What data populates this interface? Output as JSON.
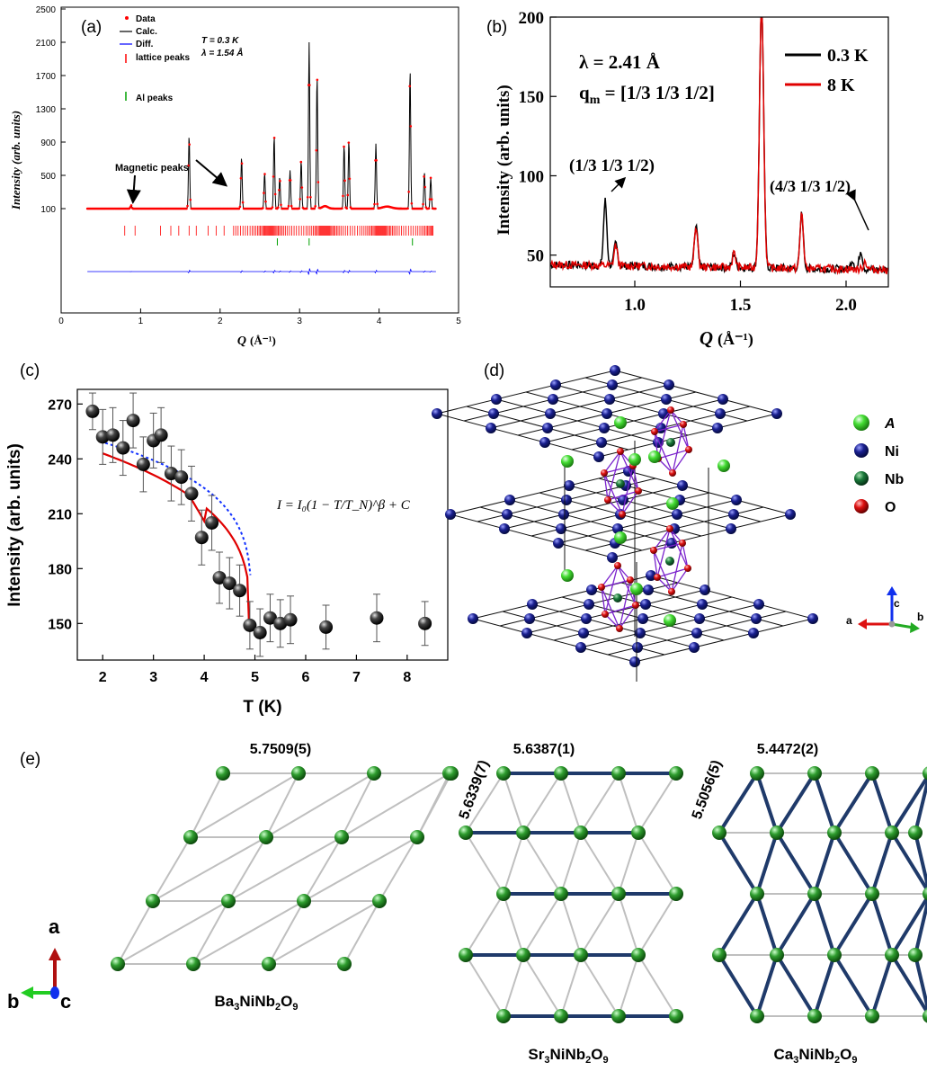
{
  "panels": {
    "a": {
      "label": "(a)",
      "ylabel": "Intensity (arb. units)",
      "xlabel_main": "Q",
      "xlabel_unit": "(Å⁻¹)",
      "legend": {
        "data": "Data",
        "calc": "Calc.",
        "diff": "Diff.",
        "lattice": "lattice peaks",
        "al": "Al peaks"
      },
      "cond_T": "T = 0.3 K",
      "cond_lambda": "λ = 1.54 Å",
      "annotation": "Magnetic peaks",
      "colors": {
        "data": "#ff0000",
        "calc": "#000000",
        "diff": "#0000ff",
        "lattice": "#ff0000",
        "al": "#00a000"
      }
    },
    "b": {
      "label": "(b)",
      "ylabel": "Intensity (arb. units)",
      "xlabel_main": "Q",
      "xlabel_unit": "(Å⁻¹)",
      "lambda": "λ = 2.41 Å",
      "qm_prefix": "q",
      "qm_sub": "m",
      "qm_value": " = [1/3 1/3 1/2]",
      "peak1": "(1/3 1/3 1/2)",
      "peak2": "(4/3 1/3 1/2)",
      "colors": {
        "t03": "#000000",
        "t8": "#e00000"
      }
    },
    "c": {
      "label": "(c)",
      "ylabel": "Intensity (arb. units)",
      "xlabel": "T (K)",
      "formula": "I = I₀(1 − T/T_N)^β + C",
      "colors": {
        "fit": "#e00000",
        "alt_fit": "#1030ff",
        "points": "#1a1a1a"
      }
    },
    "d": {
      "label": "(d)",
      "legend": [
        {
          "name": "A",
          "color": "#44dd33"
        },
        {
          "name": "Ni",
          "color": "#101880"
        },
        {
          "name": "Nb",
          "color": "#1a7a3a"
        },
        {
          "name": "O",
          "color": "#dd1111"
        }
      ],
      "axes": {
        "a": "a",
        "b": "b",
        "c": "c"
      }
    },
    "e": {
      "label": "(e)",
      "lattices": [
        {
          "edge": "5.7509(5)",
          "formula_parts": [
            "Ba",
            "3",
            "NiNb",
            "2",
            "O",
            "9"
          ]
        },
        {
          "edge": "5.6387(1)",
          "side": "5.6339(7)",
          "formula_parts": [
            "Sr",
            "3",
            "NiNb",
            "2",
            "O",
            "9"
          ]
        },
        {
          "edge": "5.4472(2)",
          "side": "5.5056(5)",
          "formula_parts": [
            "Ca",
            "3",
            "NiNb",
            "2",
            "O",
            "9"
          ]
        }
      ],
      "axes": {
        "a": "a",
        "b": "b",
        "c": "c"
      }
    }
  },
  "chart_data": [
    {
      "panel": "a",
      "type": "line",
      "xlabel": "Q (Å⁻¹)",
      "ylabel": "Intensity (arb. units)",
      "xlim": [
        0,
        5
      ],
      "ylim_ticks": [
        100,
        500,
        900,
        1300,
        1700,
        2100,
        2500
      ],
      "x_ticks": [
        0,
        1,
        2,
        3,
        4,
        5
      ],
      "series": [
        {
          "name": "Data"
        },
        {
          "name": "Calc."
        },
        {
          "name": "Diff."
        },
        {
          "name": "lattice peaks"
        },
        {
          "name": "Al peaks"
        }
      ],
      "peaks": {
        "x": [
          0.88,
          1.61,
          2.27,
          2.56,
          2.68,
          2.75,
          2.88,
          3.02,
          3.12,
          3.22,
          3.56,
          3.62,
          3.96,
          4.39,
          4.57,
          4.65
        ],
        "y": [
          140,
          980,
          720,
          530,
          980,
          480,
          560,
          680,
          2100,
          1700,
          870,
          920,
          880,
          1780,
          540,
          470
        ]
      }
    },
    {
      "panel": "b",
      "type": "line",
      "xlabel": "Q (Å⁻¹)",
      "ylabel": "Intensity (arb. units)",
      "xlim": [
        0.6,
        2.2
      ],
      "ylim": [
        30,
        200
      ],
      "x_ticks": [
        1.0,
        1.5,
        2.0
      ],
      "y_ticks": [
        50,
        100,
        150,
        200
      ],
      "series": [
        {
          "name": "0.3 K",
          "peaks_x": [
            0.86,
            0.91,
            1.29,
            1.47,
            1.6,
            1.79,
            2.03,
            2.07
          ],
          "peaks_y": [
            85,
            58,
            70,
            53,
            210,
            79,
            50,
            56
          ]
        },
        {
          "name": "8 K",
          "peaks_x": [
            0.91,
            1.29,
            1.47,
            1.6,
            1.79,
            2.09
          ],
          "peaks_y": [
            57,
            70,
            53,
            210,
            79,
            49
          ]
        }
      ]
    },
    {
      "panel": "c",
      "type": "scatter",
      "xlabel": "T (K)",
      "ylabel": "Intensity (arb. units)",
      "xlim": [
        1.5,
        8.8
      ],
      "ylim": [
        130,
        278
      ],
      "x_ticks": [
        2,
        3,
        4,
        5,
        6,
        7,
        8
      ],
      "y_ticks": [
        150,
        180,
        210,
        240,
        270
      ],
      "x": [
        1.8,
        2.0,
        2.2,
        2.4,
        2.6,
        2.8,
        3.0,
        3.15,
        3.35,
        3.55,
        3.75,
        3.95,
        4.15,
        4.3,
        4.5,
        4.7,
        4.9,
        5.1,
        5.3,
        5.5,
        5.7,
        6.4,
        7.4,
        8.35
      ],
      "y": [
        266,
        252,
        253,
        246,
        261,
        237,
        250,
        253,
        232,
        230,
        221,
        197,
        205,
        175,
        172,
        168,
        149,
        145,
        153,
        150,
        152,
        148,
        153,
        150
      ],
      "err": [
        10,
        15,
        15,
        15,
        15,
        15,
        15,
        15,
        15,
        15,
        15,
        15,
        15,
        14,
        14,
        14,
        13,
        13,
        13,
        13,
        13,
        12,
        13,
        12
      ]
    }
  ]
}
